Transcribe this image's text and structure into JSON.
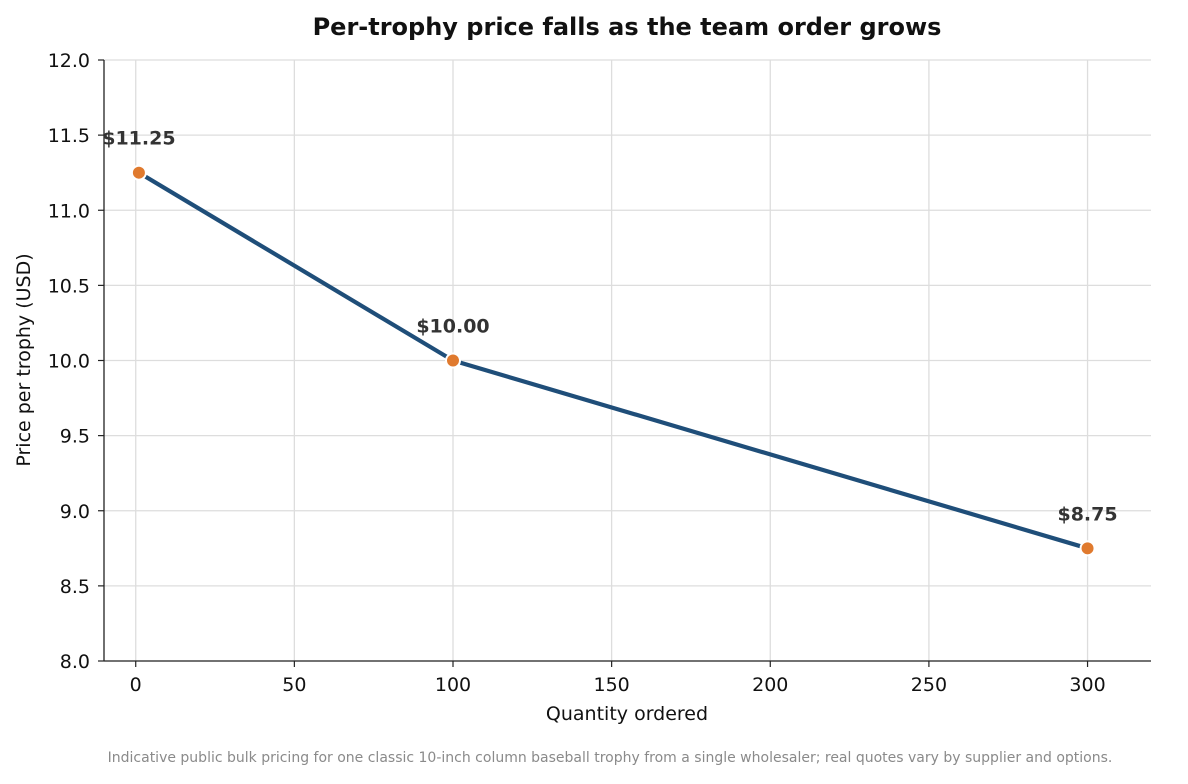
{
  "chart_data": {
    "type": "line",
    "title": "Per-trophy price falls as the team order grows",
    "xlabel": "Quantity ordered",
    "ylabel": "Price per trophy (USD)",
    "xlim": [
      -10,
      320
    ],
    "ylim": [
      8.0,
      12.0
    ],
    "x_ticks": [
      0,
      50,
      100,
      150,
      200,
      250,
      300
    ],
    "y_ticks": [
      8.0,
      8.5,
      9.0,
      9.5,
      10.0,
      10.5,
      11.0,
      11.5,
      12.0
    ],
    "x_tick_labels": [
      "0",
      "50",
      "100",
      "150",
      "200",
      "250",
      "300"
    ],
    "y_tick_labels": [
      "8.0",
      "8.5",
      "9.0",
      "9.5",
      "10.0",
      "10.5",
      "11.0",
      "11.5",
      "12.0"
    ],
    "grid": true,
    "series": [
      {
        "x": [
          1,
          100,
          300
        ],
        "values": [
          11.25,
          10.0,
          8.75
        ],
        "data_labels": [
          "$11.25",
          "$10.00",
          "$8.75"
        ]
      }
    ],
    "colors": {
      "line": "#1f4e79",
      "marker": "#e07a2e",
      "grid": "#dddddd",
      "axis": "#222222"
    },
    "footnote": "Indicative public bulk pricing for one classic 10-inch column baseball trophy from a single wholesaler; real quotes vary by supplier and options."
  }
}
